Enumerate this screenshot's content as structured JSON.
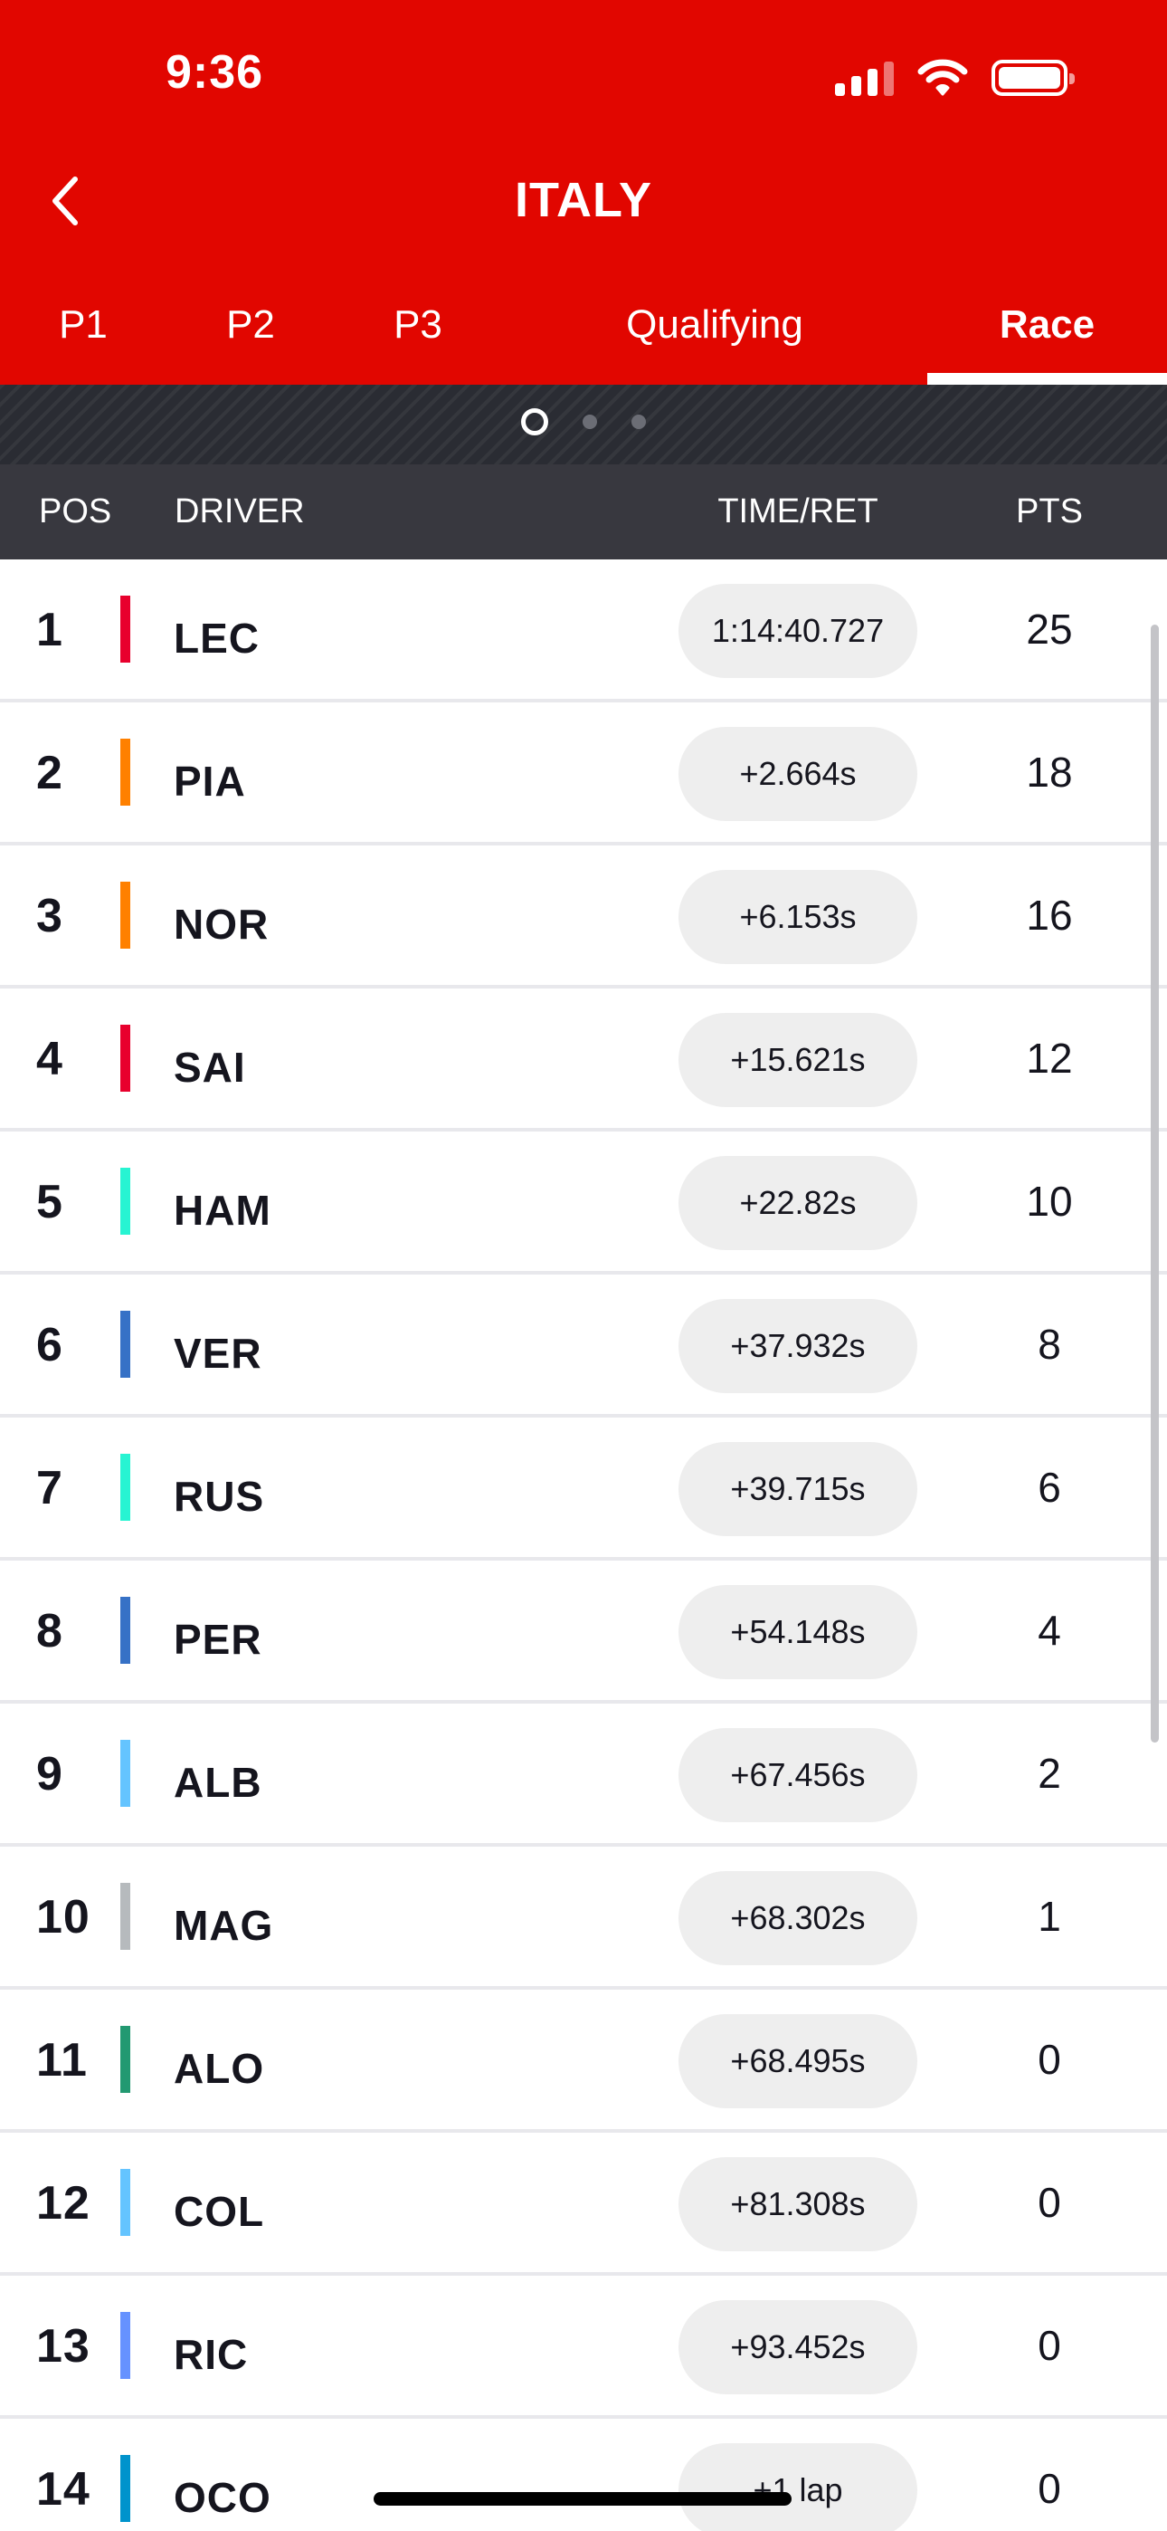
{
  "status_bar": {
    "time": "9:36"
  },
  "header": {
    "title": "ITALY"
  },
  "tabs": [
    {
      "label": "P1",
      "active": false
    },
    {
      "label": "P2",
      "active": false
    },
    {
      "label": "P3",
      "active": false
    },
    {
      "label": "Qualifying",
      "active": false
    },
    {
      "label": "Race",
      "active": true
    }
  ],
  "pager": {
    "count": 3,
    "active_index": 0
  },
  "columns": {
    "pos": "POS",
    "driver": "DRIVER",
    "time": "TIME/RET",
    "pts": "PTS"
  },
  "results": [
    {
      "pos": "1",
      "driver": "LEC",
      "team_color": "#e8002d",
      "time": "1:14:40.727",
      "pts": "25"
    },
    {
      "pos": "2",
      "driver": "PIA",
      "team_color": "#ff8000",
      "time": "+2.664s",
      "pts": "18"
    },
    {
      "pos": "3",
      "driver": "NOR",
      "team_color": "#ff8000",
      "time": "+6.153s",
      "pts": "16"
    },
    {
      "pos": "4",
      "driver": "SAI",
      "team_color": "#e8002d",
      "time": "+15.621s",
      "pts": "12"
    },
    {
      "pos": "5",
      "driver": "HAM",
      "team_color": "#27f4d2",
      "time": "+22.82s",
      "pts": "10"
    },
    {
      "pos": "6",
      "driver": "VER",
      "team_color": "#3671c6",
      "time": "+37.932s",
      "pts": "8"
    },
    {
      "pos": "7",
      "driver": "RUS",
      "team_color": "#27f4d2",
      "time": "+39.715s",
      "pts": "6"
    },
    {
      "pos": "8",
      "driver": "PER",
      "team_color": "#3671c6",
      "time": "+54.148s",
      "pts": "4"
    },
    {
      "pos": "9",
      "driver": "ALB",
      "team_color": "#64c4ff",
      "time": "+67.456s",
      "pts": "2"
    },
    {
      "pos": "10",
      "driver": "MAG",
      "team_color": "#b6babd",
      "time": "+68.302s",
      "pts": "1"
    },
    {
      "pos": "11",
      "driver": "ALO",
      "team_color": "#229971",
      "time": "+68.495s",
      "pts": "0"
    },
    {
      "pos": "12",
      "driver": "COL",
      "team_color": "#64c4ff",
      "time": "+81.308s",
      "pts": "0"
    },
    {
      "pos": "13",
      "driver": "RIC",
      "team_color": "#6692ff",
      "time": "+93.452s",
      "pts": "0"
    },
    {
      "pos": "14",
      "driver": "OCO",
      "team_color": "#0093cc",
      "time": "+1 lap",
      "pts": "0"
    }
  ],
  "colors": {
    "brand": "#e10600",
    "header_dark": "#38383f"
  },
  "icons": {
    "back": "chevron-left-icon",
    "signal": "cellular-signal-icon",
    "wifi": "wifi-icon",
    "battery": "battery-icon"
  }
}
